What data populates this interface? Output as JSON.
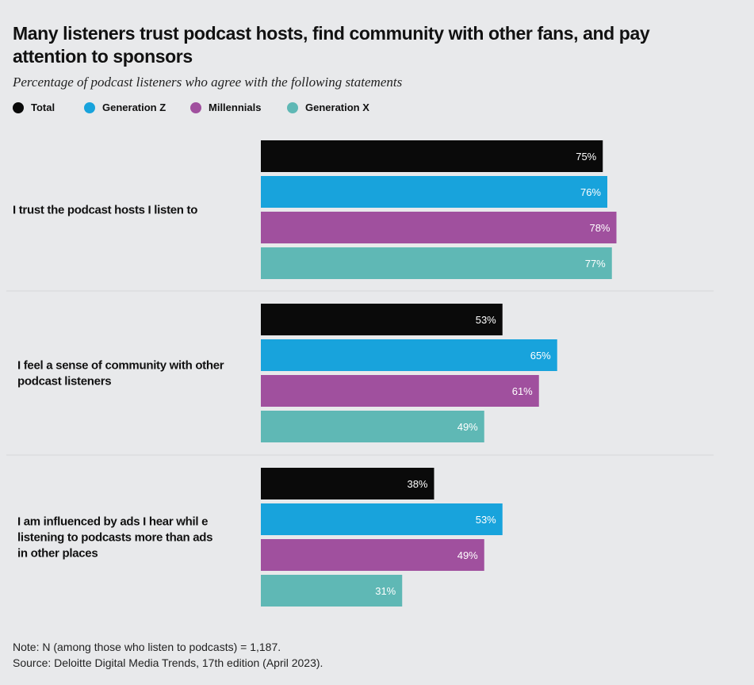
{
  "title": "Many listeners trust podcast hosts, find community with other fans, and pay attention to sponsors",
  "subtitle": "Percentage of podcast listeners who agree with the following statements",
  "legend": [
    {
      "label": "Total",
      "color": "#0a0a0a"
    },
    {
      "label": "Generation Z",
      "color": "#18a3dc"
    },
    {
      "label": "Millennials",
      "color": "#a0509e"
    },
    {
      "label": "Generation X",
      "color": "#5fb8b5"
    }
  ],
  "chart_data": {
    "type": "bar",
    "orientation": "horizontal",
    "categories": [
      [
        "I trust the podcast hosts I listen to"
      ],
      [
        "I feel a sense of community with other",
        "podcast listeners"
      ],
      [
        "I am influenced by ads I hear whil e",
        "listening to podcasts more than ads",
        "in other places"
      ]
    ],
    "series": [
      {
        "name": "Total",
        "color": "#0a0a0a",
        "values": [
          75,
          53,
          38
        ],
        "labels": [
          "75%",
          "53%",
          "38%"
        ]
      },
      {
        "name": "Generation Z",
        "color": "#18a3dc",
        "values": [
          76,
          65,
          53
        ],
        "labels": [
          "76%",
          "65%",
          "53%"
        ]
      },
      {
        "name": "Millennials",
        "color": "#a0509e",
        "values": [
          78,
          61,
          49
        ],
        "labels": [
          "78%",
          "61%",
          "49%"
        ]
      },
      {
        "name": "Generation X",
        "color": "#5fb8b5",
        "values": [
          77,
          49,
          31
        ],
        "labels": [
          "77%",
          "49%",
          "31%"
        ]
      }
    ],
    "xlim": [
      0,
      100
    ],
    "grid": false,
    "legend_position": "top-left"
  },
  "notes": {
    "note": "Note: N (among those who listen to podcasts) = 1,187.",
    "source": "Source: Deloitte Digital Media Trends, 17th edition (April 2023)."
  }
}
